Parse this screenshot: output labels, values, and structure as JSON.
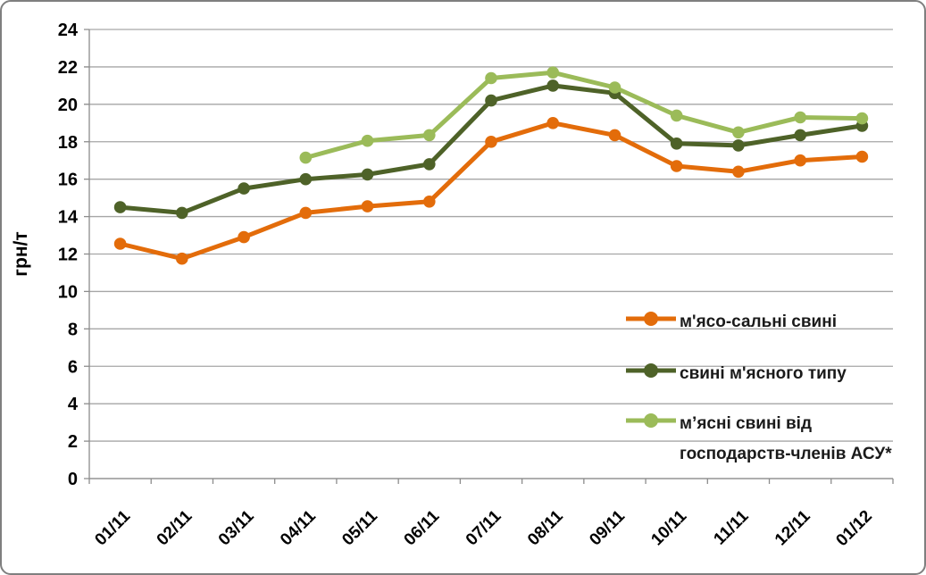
{
  "frame": {
    "background": "#FFFFFF",
    "border_color": "#7F7F7F"
  },
  "chart_data": {
    "type": "line",
    "title": "",
    "xlabel": "",
    "ylabel": "грн/т",
    "ylim": [
      0,
      24
    ],
    "ytick_step": 2,
    "grid": true,
    "legend_position": "right-middle",
    "categories": [
      "01/11",
      "02/11",
      "03/11",
      "04/11",
      "05/11",
      "06/11",
      "07/11",
      "08/11",
      "09/11",
      "10/11",
      "11/11",
      "12/11",
      "01/12"
    ],
    "series": [
      {
        "name": "м'ясо-сальні свині",
        "color": "#E36C0A",
        "values": [
          12.55,
          11.75,
          12.9,
          14.2,
          14.55,
          14.8,
          18.0,
          19.0,
          18.35,
          16.7,
          16.4,
          17.0,
          17.2
        ]
      },
      {
        "name": "свині м'ясного типу",
        "color": "#4E6228",
        "values": [
          14.5,
          14.2,
          15.5,
          16.0,
          16.25,
          16.8,
          20.2,
          21.0,
          20.6,
          17.9,
          17.8,
          18.35,
          18.85
        ]
      },
      {
        "name": "м’ясні свині від господарств-членів АСУ*",
        "color": "#9BBB59",
        "values": [
          null,
          null,
          null,
          17.15,
          18.05,
          18.35,
          21.4,
          21.7,
          20.9,
          19.4,
          18.5,
          19.3,
          19.25
        ]
      }
    ],
    "colors": {
      "gridline": "#A6A6A6",
      "axis": "#8C8C8C",
      "tick_text": "#000000"
    }
  }
}
